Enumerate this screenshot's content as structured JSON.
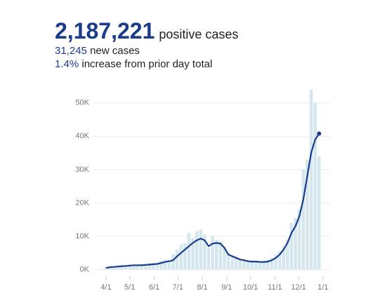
{
  "header": {
    "total": "2,187,221",
    "total_label": "positive cases",
    "new_cases": "31,245",
    "new_label": "new cases",
    "pct": "1.4%",
    "pct_label": "increase from prior day total"
  },
  "chart_data": {
    "type": "bar-line",
    "x": [
      0,
      5,
      10,
      15,
      20,
      25,
      30,
      35,
      40,
      45,
      50,
      55,
      60,
      65,
      70,
      75,
      80,
      85,
      90,
      95,
      100,
      105,
      110,
      115,
      120,
      125,
      130,
      135,
      140,
      145,
      150,
      155,
      160,
      165,
      170,
      175,
      180,
      185,
      190,
      195,
      200,
      205,
      210,
      215,
      220,
      225,
      230,
      235,
      240,
      245,
      250,
      255,
      260,
      265,
      270
    ],
    "series": [
      {
        "kind": "bar",
        "color": "#d4e7ef",
        "values": [
          1000,
          1200,
          1000,
          1300,
          1400,
          1200,
          1600,
          1300,
          1500,
          1800,
          1400,
          1900,
          2000,
          1800,
          2600,
          3000,
          2800,
          4500,
          6000,
          7500,
          8000,
          11000,
          9500,
          11500,
          12000,
          10500,
          6500,
          10000,
          9000,
          8500,
          7000,
          5000,
          4200,
          4000,
          3200,
          3000,
          2700,
          2600,
          2800,
          2500,
          2600,
          3000,
          3500,
          4500,
          5500,
          7000,
          9000,
          14000,
          15500,
          18000,
          30000,
          33000,
          54000,
          50000,
          34000
        ]
      },
      {
        "kind": "line",
        "color": "#1b3c8c",
        "values": [
          500,
          700,
          800,
          900,
          1000,
          1100,
          1200,
          1300,
          1300,
          1300,
          1400,
          1500,
          1600,
          1700,
          2000,
          2300,
          2500,
          2800,
          4000,
          5000,
          6000,
          7000,
          8000,
          8800,
          9300,
          8800,
          7000,
          7800,
          8000,
          7800,
          6500,
          4500,
          4000,
          3500,
          3000,
          2800,
          2500,
          2400,
          2400,
          2300,
          2300,
          2400,
          2800,
          3500,
          4500,
          6000,
          8000,
          11000,
          13000,
          16000,
          21000,
          28000,
          35000,
          39000,
          40800
        ]
      }
    ],
    "xlim": [
      -16,
      284
    ],
    "xticks": [
      {
        "value": 0,
        "label": "4/1"
      },
      {
        "value": 30,
        "label": "5/1"
      },
      {
        "value": 61,
        "label": "6/1"
      },
      {
        "value": 91,
        "label": "7/1"
      },
      {
        "value": 122,
        "label": "8/1"
      },
      {
        "value": 153,
        "label": "9/1"
      },
      {
        "value": 183,
        "label": "10/1"
      },
      {
        "value": 214,
        "label": "11/1"
      },
      {
        "value": 244,
        "label": "12/1"
      },
      {
        "value": 275,
        "label": "1/1"
      }
    ],
    "ylim": [
      -2000,
      55000
    ],
    "yticks": [
      {
        "value": 0,
        "label": "0K"
      },
      {
        "value": 10000,
        "label": "10K"
      },
      {
        "value": 20000,
        "label": "20K"
      },
      {
        "value": 30000,
        "label": "30K"
      },
      {
        "value": 40000,
        "label": "40K"
      },
      {
        "value": 50000,
        "label": "50K"
      }
    ],
    "grid": true
  }
}
